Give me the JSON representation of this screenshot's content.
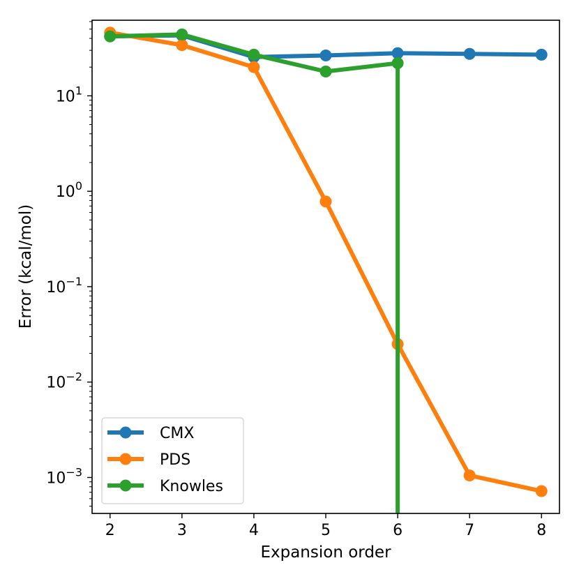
{
  "chart_data": {
    "type": "line",
    "title": "",
    "xlabel": "Expansion order",
    "ylabel": "Error (kcal/mol)",
    "xscale": "linear",
    "yscale": "log",
    "xlim": [
      1.75,
      8.25
    ],
    "ylim": [
      0.00042,
      62
    ],
    "xticks": [
      2,
      3,
      4,
      5,
      6,
      7,
      8
    ],
    "xtick_labels": [
      "2",
      "3",
      "4",
      "5",
      "6",
      "7",
      "8"
    ],
    "yticks": [
      {
        "base": "10",
        "exp": "−3",
        "value": 0.001
      },
      {
        "base": "10",
        "exp": "−2",
        "value": 0.01
      },
      {
        "base": "10",
        "exp": "−1",
        "value": 0.1
      },
      {
        "base": "10",
        "exp": "0",
        "value": 1
      },
      {
        "base": "10",
        "exp": "1",
        "value": 10
      }
    ],
    "grid": false,
    "legend_position": "lower-left",
    "series": [
      {
        "name": "CMX",
        "color": "#1f77b4",
        "x": [
          2,
          3,
          4,
          5,
          6,
          7,
          8
        ],
        "y": [
          42,
          43,
          25.5,
          26.5,
          28,
          27.5,
          27
        ]
      },
      {
        "name": "PDS",
        "color": "#ff7f0e",
        "x": [
          2,
          3,
          4,
          5,
          6,
          7,
          8
        ],
        "y": [
          46,
          34,
          20,
          0.78,
          0.025,
          0.00105,
          0.00072
        ]
      },
      {
        "name": "Knowles",
        "color": "#2ca02c",
        "x": [
          2,
          3,
          4,
          5,
          6
        ],
        "y": [
          42,
          44,
          27,
          18,
          22
        ],
        "drop_to_bottom_at_x": 6
      }
    ]
  }
}
